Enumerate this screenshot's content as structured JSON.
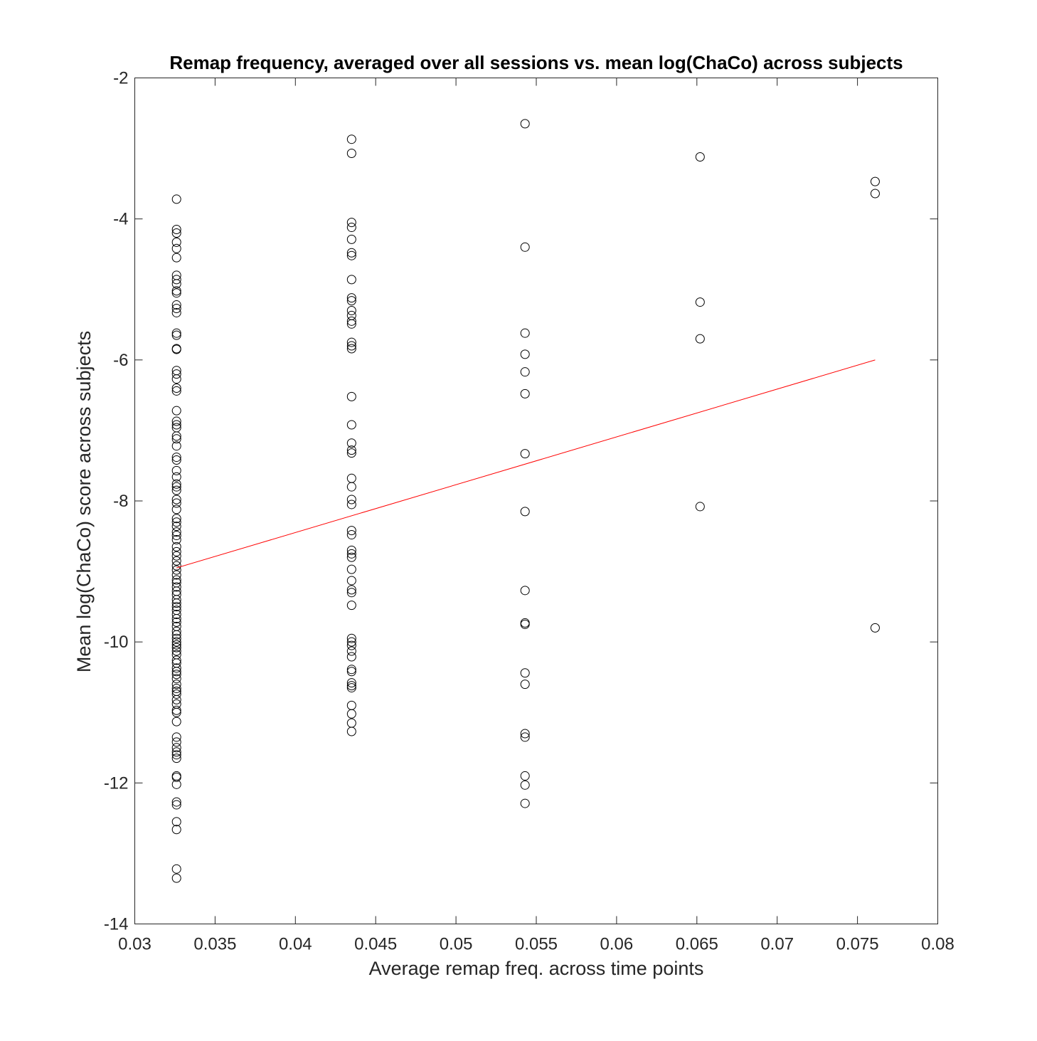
{
  "chart_data": {
    "type": "scatter",
    "title": "Remap frequency, averaged over all sessions vs. mean log(ChaCo) across subjects",
    "xlabel": "Average remap freq. across time points",
    "ylabel": "Mean log(ChaCo) score across subjects",
    "xlim": [
      0.03,
      0.08
    ],
    "ylim": [
      -14,
      -2
    ],
    "xticks": [
      0.03,
      0.035,
      0.04,
      0.045,
      0.05,
      0.055,
      0.06,
      0.065,
      0.07,
      0.075,
      0.08
    ],
    "xtick_labels": [
      "0.03",
      "0.035",
      "0.04",
      "0.045",
      "0.05",
      "0.055",
      "0.06",
      "0.065",
      "0.07",
      "0.075",
      "0.08"
    ],
    "yticks": [
      -14,
      -12,
      -10,
      -8,
      -6,
      -4,
      -2
    ],
    "ytick_labels": [
      "-14",
      "-12",
      "-10",
      "-8",
      "-6",
      "-4",
      "-2"
    ],
    "grid": false,
    "colors": {
      "points": "#000000",
      "fit_line": "#ff0000"
    },
    "fit_line": {
      "x": [
        0.0326,
        0.0761
      ],
      "y": [
        -8.95,
        -6.0
      ]
    },
    "series": [
      {
        "x_value": 0.0326,
        "y": [
          -3.72,
          -4.15,
          -4.2,
          -4.33,
          -4.42,
          -4.55,
          -4.8,
          -4.86,
          -4.92,
          -5.02,
          -5.05,
          -5.22,
          -5.27,
          -5.33,
          -5.62,
          -5.65,
          -5.84,
          -5.85,
          -6.15,
          -6.2,
          -6.27,
          -6.4,
          -6.44,
          -6.72,
          -6.87,
          -6.92,
          -6.96,
          -7.08,
          -7.12,
          -7.22,
          -7.38,
          -7.42,
          -7.57,
          -7.66,
          -7.76,
          -7.8,
          -7.85,
          -7.98,
          -8.03,
          -8.12,
          -8.25,
          -8.3,
          -8.36,
          -8.44,
          -8.49,
          -8.55,
          -8.65,
          -8.72,
          -8.78,
          -8.85,
          -8.92,
          -8.98,
          -9.05,
          -9.12,
          -9.16,
          -9.22,
          -9.28,
          -9.33,
          -9.4,
          -9.45,
          -9.5,
          -9.55,
          -9.61,
          -9.67,
          -9.72,
          -9.78,
          -9.85,
          -9.9,
          -9.95,
          -10.0,
          -10.04,
          -10.08,
          -10.13,
          -10.18,
          -10.26,
          -10.3,
          -10.37,
          -10.42,
          -10.46,
          -10.52,
          -10.6,
          -10.66,
          -10.7,
          -10.74,
          -10.82,
          -10.88,
          -10.97,
          -11.0,
          -11.13,
          -11.35,
          -11.42,
          -11.5,
          -11.56,
          -11.6,
          -11.65,
          -11.9,
          -11.92,
          -12.02,
          -12.27,
          -12.31,
          -12.55,
          -12.66,
          -13.22,
          -13.35
        ]
      },
      {
        "x_value": 0.0435,
        "y": [
          -2.87,
          -3.07,
          -4.05,
          -4.12,
          -4.29,
          -4.48,
          -4.52,
          -4.86,
          -5.12,
          -5.16,
          -5.3,
          -5.37,
          -5.45,
          -5.49,
          -5.75,
          -5.8,
          -5.84,
          -6.52,
          -6.92,
          -7.18,
          -7.28,
          -7.32,
          -7.68,
          -7.8,
          -7.98,
          -8.05,
          -8.42,
          -8.48,
          -8.7,
          -8.75,
          -8.8,
          -8.97,
          -9.13,
          -9.26,
          -9.3,
          -9.48,
          -9.95,
          -10.0,
          -10.05,
          -10.13,
          -10.21,
          -10.39,
          -10.42,
          -10.58,
          -10.62,
          -10.65,
          -10.9,
          -11.02,
          -11.15,
          -11.27
        ]
      },
      {
        "x_value": 0.0543,
        "y": [
          -2.65,
          -4.4,
          -5.62,
          -5.92,
          -6.17,
          -6.48,
          -7.33,
          -8.15,
          -9.27,
          -9.73,
          -9.75,
          -10.44,
          -10.6,
          -11.3,
          -11.35,
          -11.9,
          -12.03,
          -12.29
        ]
      },
      {
        "x_value": 0.0652,
        "y": [
          -3.12,
          -5.18,
          -5.7,
          -8.08
        ]
      },
      {
        "x_value": 0.0761,
        "y": [
          -3.47,
          -3.64,
          -9.8
        ]
      }
    ]
  }
}
